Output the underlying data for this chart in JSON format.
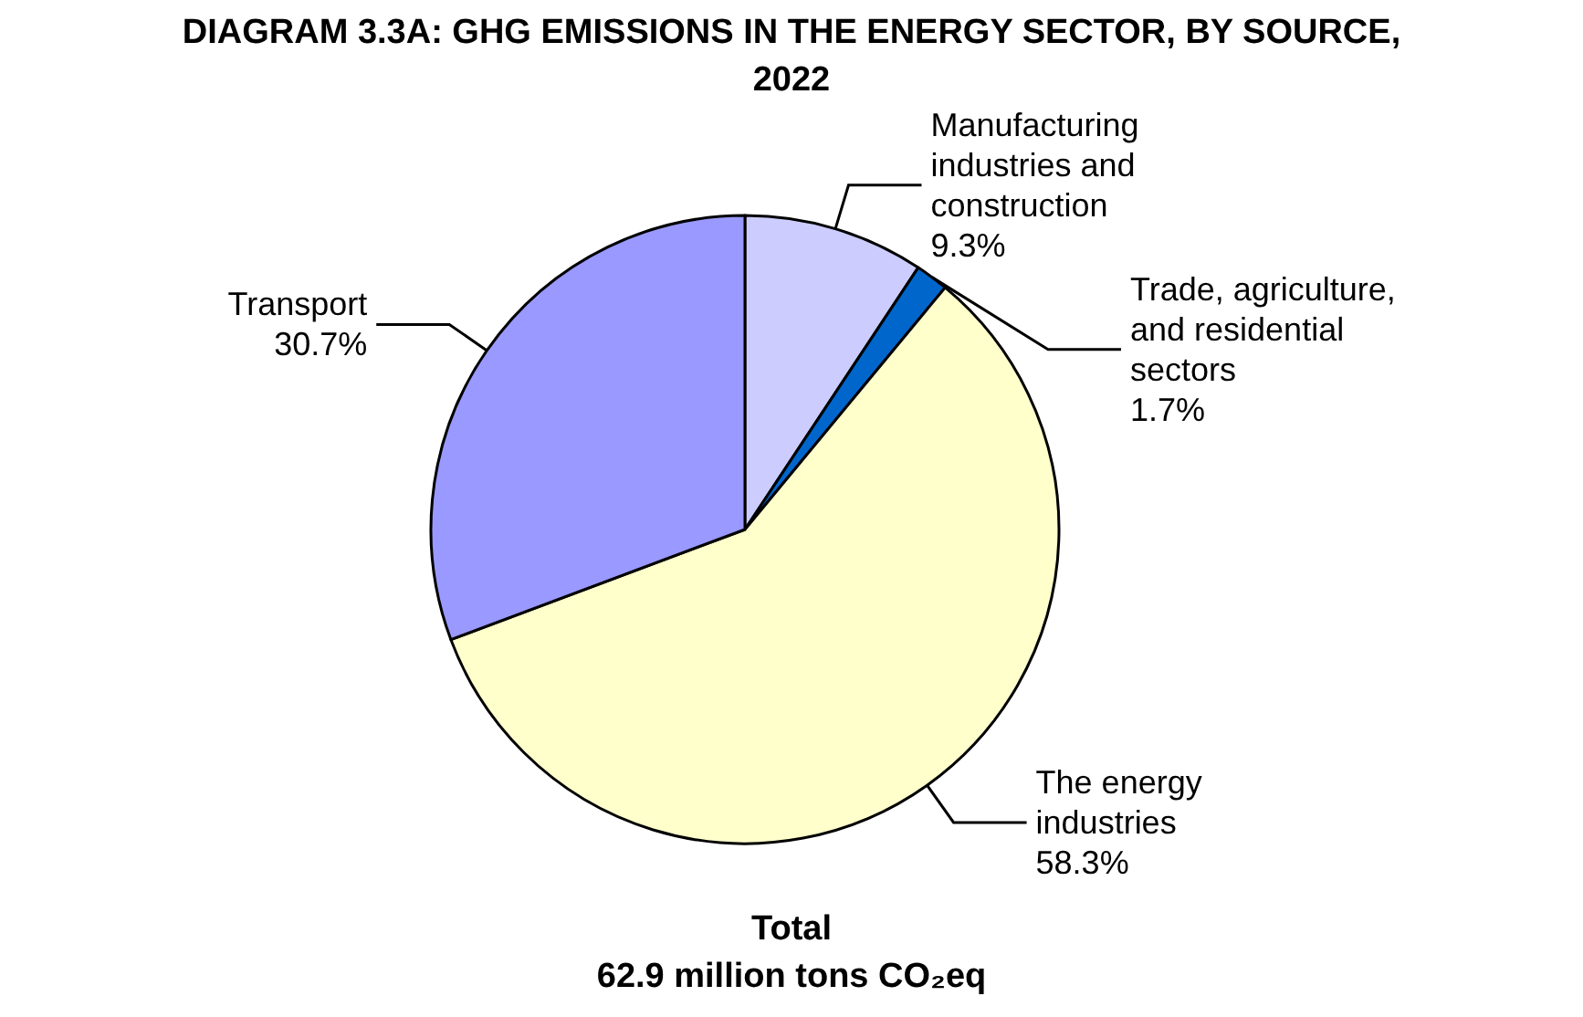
{
  "chart_data": {
    "type": "pie",
    "title": "DIAGRAM 3.3A: GHG EMISSIONS IN THE ENERGY SECTOR, BY SOURCE,\n2022",
    "categories": [
      "Manufacturing\nindustries and\nconstruction",
      "Trade, agriculture,\nand residential\nsectors",
      "The energy\nindustries",
      "Transport"
    ],
    "values": [
      9.3,
      1.7,
      58.3,
      30.7
    ],
    "colors": [
      "#ccccff",
      "#0066cc",
      "#ffffcc",
      "#9999ff"
    ],
    "value_labels": [
      "9.3%",
      "1.7%",
      "58.3%",
      "30.7%"
    ],
    "legend": false,
    "annotations": [
      "Total\n62.9 million tons CO₂eq"
    ]
  }
}
